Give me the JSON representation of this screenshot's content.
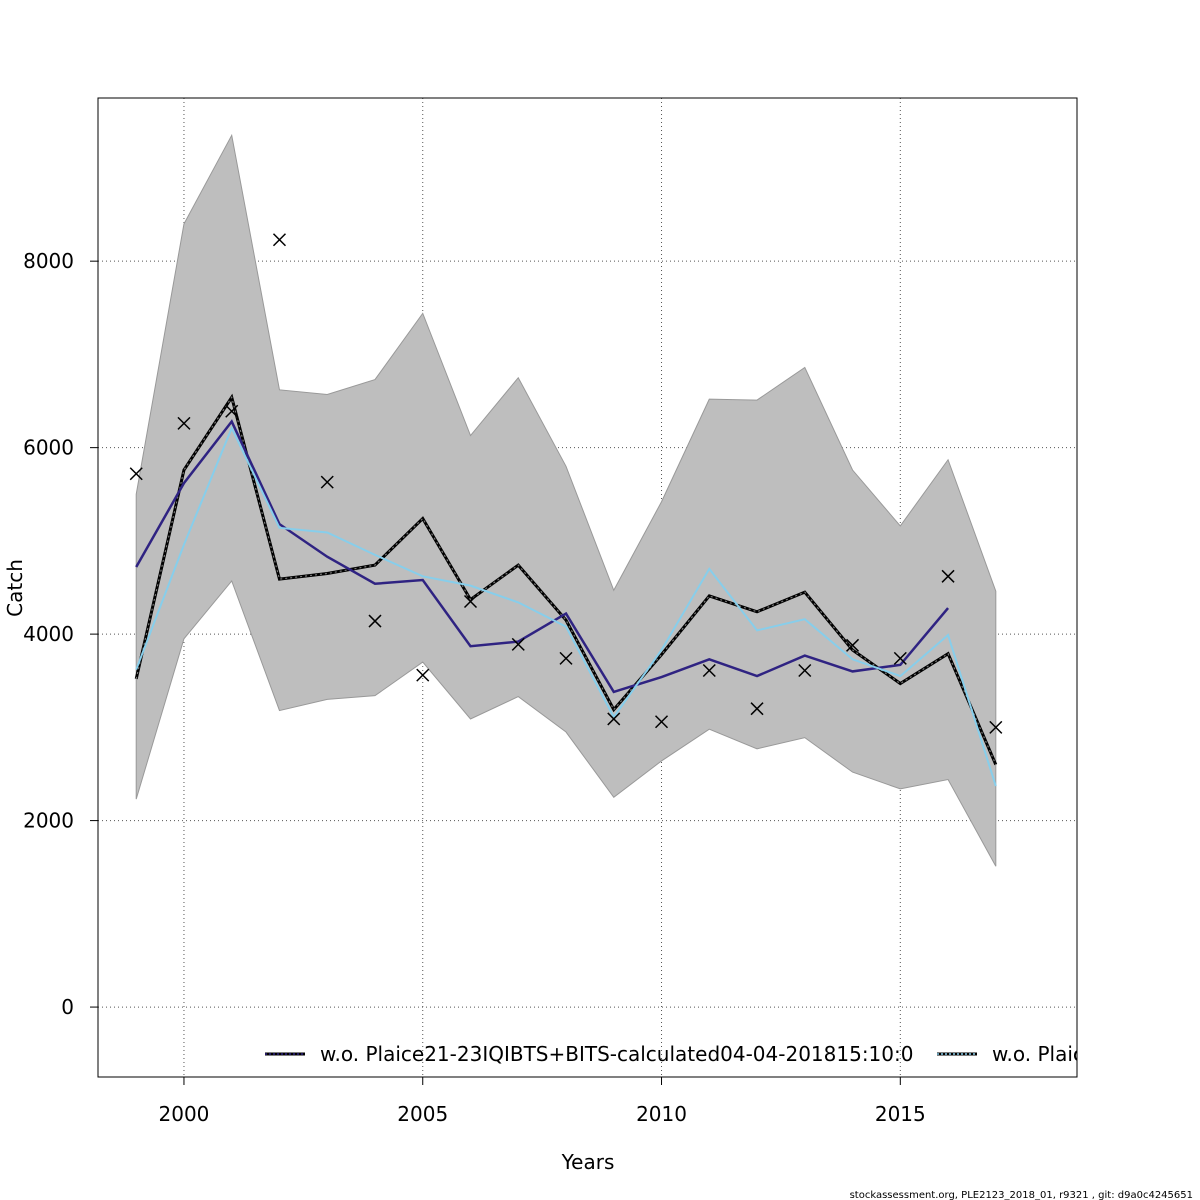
{
  "chart_data": {
    "type": "line",
    "title": "",
    "xlabel": "Years",
    "ylabel": "Catch",
    "xlim": [
      1998.2,
      2018.7
    ],
    "ylim": [
      -750,
      9750
    ],
    "x_ticks": [
      2000,
      2005,
      2010,
      2015
    ],
    "y_ticks": [
      0,
      2000,
      4000,
      6000,
      8000
    ],
    "grid": true,
    "legend_position": "bottom",
    "colors": {
      "band": "#bebebe",
      "band_edge": "#999999",
      "base": "#000000",
      "series_a": "#2f2382",
      "series_b": "#87ceeb"
    },
    "x": [
      1999,
      2000,
      2001,
      2002,
      2003,
      2004,
      2005,
      2006,
      2007,
      2008,
      2009,
      2010,
      2011,
      2012,
      2013,
      2014,
      2015,
      2016,
      2017
    ],
    "band_upper": [
      5500,
      8400,
      9350,
      6620,
      6570,
      6730,
      7440,
      6130,
      6750,
      5800,
      4470,
      5420,
      6520,
      6510,
      6860,
      5760,
      5160,
      5870,
      4460
    ],
    "band_lower": [
      2230,
      3950,
      4570,
      3180,
      3300,
      3340,
      3700,
      3090,
      3330,
      2950,
      2250,
      2640,
      2980,
      2770,
      2890,
      2520,
      2340,
      2440,
      1510
    ],
    "estimate": [
      3520,
      5760,
      6540,
      4590,
      4650,
      4740,
      5240,
      4370,
      4740,
      4150,
      3190,
      3780,
      4410,
      4240,
      4450,
      3830,
      3470,
      3790,
      2600
    ],
    "observed": [
      5720,
      6260,
      6390,
      8230,
      5630,
      4140,
      3560,
      4350,
      3890,
      3740,
      3090,
      3060,
      3610,
      3200,
      3610,
      3880,
      3740,
      4620,
      3000
    ],
    "series": [
      {
        "name": "w.o. Plaice21-23IQIBTS+BITS-calculated04-04-201815:10:0",
        "values": [
          4720,
          5620,
          6280,
          5180,
          4830,
          4540,
          4580,
          3870,
          3920,
          4220,
          3380,
          3540,
          3730,
          3550,
          3770,
          3600,
          3670,
          4280,
          null
        ]
      },
      {
        "name": "w.o. Plaic",
        "values": [
          3620,
          4960,
          6210,
          5140,
          5090,
          4850,
          4620,
          4520,
          4340,
          4080,
          3110,
          3830,
          4700,
          4040,
          4160,
          3730,
          3550,
          3990,
          2370
        ]
      }
    ]
  },
  "footer": {
    "text": "stockassessment.org, PLE2123_2018_01, r9321 , git: d9a0c4245651"
  }
}
